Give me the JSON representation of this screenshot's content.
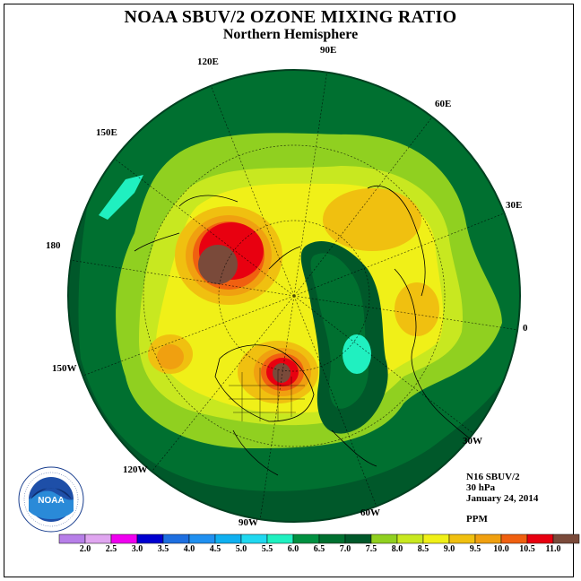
{
  "title": "NOAA SBUV/2 OZONE MIXING RATIO",
  "subtitle": "Northern Hemisphere",
  "longitude_labels": [
    "90E",
    "60E",
    "30E",
    "0",
    "30W",
    "60W",
    "90W",
    "120W",
    "150W",
    "180",
    "150E",
    "120E"
  ],
  "info": {
    "instrument": "N16 SBUV/2",
    "level": "30 hPa",
    "date": "January 24, 2014",
    "units": "PPM"
  },
  "logo": {
    "text": "NOAA",
    "ring_text": "NATIONAL OCEANIC AND ATMOSPHERIC ADMINISTRATION · U.S. DEPARTMENT OF COMMERCE"
  },
  "legend": {
    "ticks": [
      "2.0",
      "2.5",
      "3.0",
      "3.5",
      "4.0",
      "4.5",
      "5.0",
      "5.5",
      "6.0",
      "6.5",
      "7.0",
      "7.5",
      "8.0",
      "8.5",
      "9.0",
      "9.5",
      "10.0",
      "10.5",
      "11.0"
    ],
    "colors": [
      "#b77fe8",
      "#e0a6f0",
      "#f000f0",
      "#0000d0",
      "#1e6fe0",
      "#2090f0",
      "#10b0f0",
      "#20d8f0",
      "#20f0c0",
      "#009040",
      "#007030",
      "#00582a",
      "#90d020",
      "#c8e820",
      "#f0f018",
      "#f0c010",
      "#f0a010",
      "#f06010",
      "#e80010",
      "#7a4a3a"
    ]
  },
  "colors": {
    "ocean_bg": "#00582a",
    "contour_dark": "#007030",
    "contour_mid": "#009040"
  }
}
